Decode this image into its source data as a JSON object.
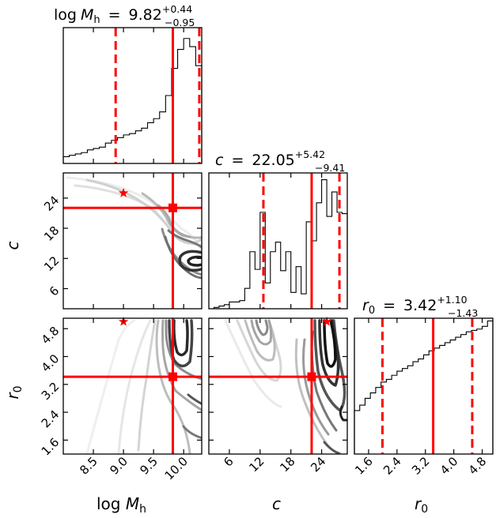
{
  "titles": [
    {
      "param": "log",
      "sym": "M",
      "sub": "h",
      "value": "9.82",
      "plus": "+0.44",
      "minus": "−0.95"
    },
    {
      "param": "",
      "sym": "c",
      "sub": "",
      "value": "22.05",
      "plus": "+5.42",
      "minus": "−9.41"
    },
    {
      "param": "",
      "sym": "r",
      "sub": "0",
      "value": "3.42",
      "plus": "+1.10",
      "minus": "−1.43"
    }
  ],
  "axis_labels": {
    "x": [
      {
        "pre": "log ",
        "sym": "M",
        "sub": "h"
      },
      {
        "pre": "",
        "sym": "c",
        "sub": ""
      },
      {
        "pre": "",
        "sym": "r",
        "sub": "0"
      }
    ],
    "y": [
      {
        "sym": "c",
        "sub": ""
      },
      {
        "sym": "r",
        "sub": "0"
      }
    ]
  },
  "colors": {
    "marker": "#ff0000",
    "hist": "#000000",
    "contour_dark": "#222222",
    "contour_light": "#e0e0e0"
  },
  "chart_data": {
    "type": "corner",
    "parameters": [
      "logMh",
      "c",
      "r0"
    ],
    "ranges": {
      "logMh": [
        8.0,
        10.3
      ],
      "c": [
        2,
        29
      ],
      "r0": [
        1.2,
        5.1
      ]
    },
    "ticks": {
      "logMh": [
        "8.5",
        "9.0",
        "9.5",
        "10.0"
      ],
      "c": [
        "6",
        "12",
        "18",
        "24"
      ],
      "r0": [
        "1.6",
        "2.4",
        "3.2",
        "4.0",
        "4.8"
      ]
    },
    "medians": {
      "logMh": 9.82,
      "c": 22.05,
      "r0": 3.42
    },
    "quantiles": {
      "logMh": [
        8.87,
        10.26
      ],
      "c": [
        12.64,
        27.47
      ],
      "r0": [
        1.99,
        4.52
      ]
    },
    "truths": {
      "logMh": 9.0,
      "c": 25.0,
      "r0": 5.0
    },
    "hist_logMh": {
      "edges": [
        8.0,
        8.1,
        8.2,
        8.3,
        8.4,
        8.5,
        8.6,
        8.7,
        8.8,
        8.9,
        9.0,
        9.1,
        9.2,
        9.3,
        9.4,
        9.5,
        9.6,
        9.7,
        9.8,
        9.9,
        10.0,
        10.1,
        10.2,
        10.3
      ],
      "counts": [
        0.05,
        0.06,
        0.07,
        0.08,
        0.1,
        0.11,
        0.12,
        0.15,
        0.17,
        0.19,
        0.21,
        0.22,
        0.24,
        0.26,
        0.3,
        0.33,
        0.38,
        0.5,
        0.7,
        0.84,
        0.92,
        0.86,
        0.72
      ]
    },
    "hist_c": {
      "edges": [
        3,
        4,
        5,
        6,
        7,
        8,
        9,
        10,
        11,
        12,
        13,
        14,
        15,
        16,
        17,
        18,
        19,
        20,
        21,
        22,
        23,
        24,
        25,
        26,
        27,
        28,
        29
      ],
      "counts": [
        0.01,
        0.02,
        0.03,
        0.05,
        0.05,
        0.06,
        0.15,
        0.42,
        0.29,
        0.71,
        0.19,
        0.42,
        0.49,
        0.28,
        0.42,
        0.12,
        0.31,
        0.11,
        0.64,
        0.5,
        0.78,
        0.95,
        0.68,
        0.86,
        0.71,
        0.7
      ]
    },
    "hist_r0": {
      "edges": [
        1.2,
        1.35,
        1.5,
        1.65,
        1.8,
        1.95,
        2.1,
        2.25,
        2.4,
        2.55,
        2.7,
        2.85,
        3.0,
        3.15,
        3.3,
        3.45,
        3.6,
        3.75,
        3.9,
        4.05,
        4.2,
        4.35,
        4.5,
        4.65,
        4.8,
        4.95,
        5.1
      ],
      "counts": [
        0.32,
        0.36,
        0.41,
        0.45,
        0.49,
        0.53,
        0.55,
        0.58,
        0.61,
        0.63,
        0.65,
        0.68,
        0.7,
        0.73,
        0.76,
        0.78,
        0.8,
        0.82,
        0.84,
        0.86,
        0.88,
        0.9,
        0.91,
        0.92,
        0.94,
        0.98
      ]
    }
  }
}
